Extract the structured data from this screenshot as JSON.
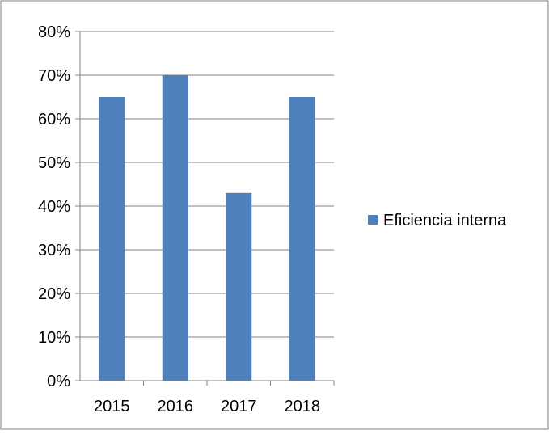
{
  "chart_data": {
    "type": "bar",
    "categories": [
      "2015",
      "2016",
      "2017",
      "2018"
    ],
    "series": [
      {
        "name": "Eficiencia interna",
        "values": [
          65,
          70,
          43,
          65
        ],
        "color": "#4f81bd"
      }
    ],
    "ylim": [
      0,
      80
    ],
    "yticks": [
      "0%",
      "10%",
      "20%",
      "30%",
      "40%",
      "50%",
      "60%",
      "70%",
      "80%"
    ],
    "grid": true,
    "legend": "right"
  }
}
